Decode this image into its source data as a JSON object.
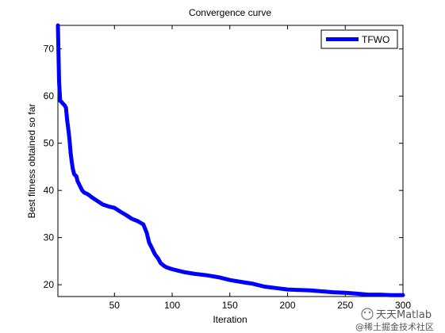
{
  "chart_data": {
    "type": "line",
    "title": "Convergence curve",
    "xlabel": "Iteration",
    "ylabel": "Best fitness obtained so far",
    "xlim": [
      1,
      300
    ],
    "ylim": [
      17.5,
      75
    ],
    "xticks": [
      50,
      100,
      150,
      200,
      250,
      300
    ],
    "yticks": [
      20,
      30,
      40,
      50,
      60,
      70
    ],
    "grid": false,
    "legend": "top-right",
    "series": [
      {
        "name": "TFWO",
        "color": "#0000ff",
        "x": [
          1,
          2,
          3,
          4,
          5,
          7,
          8,
          9,
          10,
          11,
          12,
          13,
          14,
          15,
          16,
          17,
          18,
          20,
          22,
          24,
          26,
          28,
          30,
          35,
          40,
          45,
          50,
          55,
          60,
          65,
          70,
          75,
          78,
          80,
          83,
          85,
          88,
          90,
          93,
          95,
          100,
          105,
          110,
          120,
          130,
          140,
          150,
          160,
          170,
          180,
          190,
          200,
          210,
          220,
          230,
          240,
          250,
          260,
          270,
          280,
          290,
          300
        ],
        "y": [
          75,
          63,
          59,
          58.8,
          58.5,
          58,
          57.5,
          55,
          53,
          51,
          48,
          46,
          44.5,
          43.5,
          43.2,
          43,
          42,
          41,
          40,
          39.5,
          39.3,
          39,
          38.6,
          37.8,
          37,
          36.6,
          36.3,
          35.5,
          34.8,
          34,
          33.5,
          32.8,
          31,
          29,
          27.5,
          26.5,
          25.5,
          24.6,
          24,
          23.7,
          23.3,
          23,
          22.7,
          22.3,
          22,
          21.6,
          21,
          20.6,
          20.2,
          19.6,
          19.3,
          19,
          18.9,
          18.8,
          18.6,
          18.4,
          18.3,
          18.1,
          17.9,
          17.9,
          17.8,
          17.8
        ]
      }
    ]
  },
  "watermark": {
    "line1": "天天Matlab",
    "line2": "@稀土掘金技术社区"
  }
}
